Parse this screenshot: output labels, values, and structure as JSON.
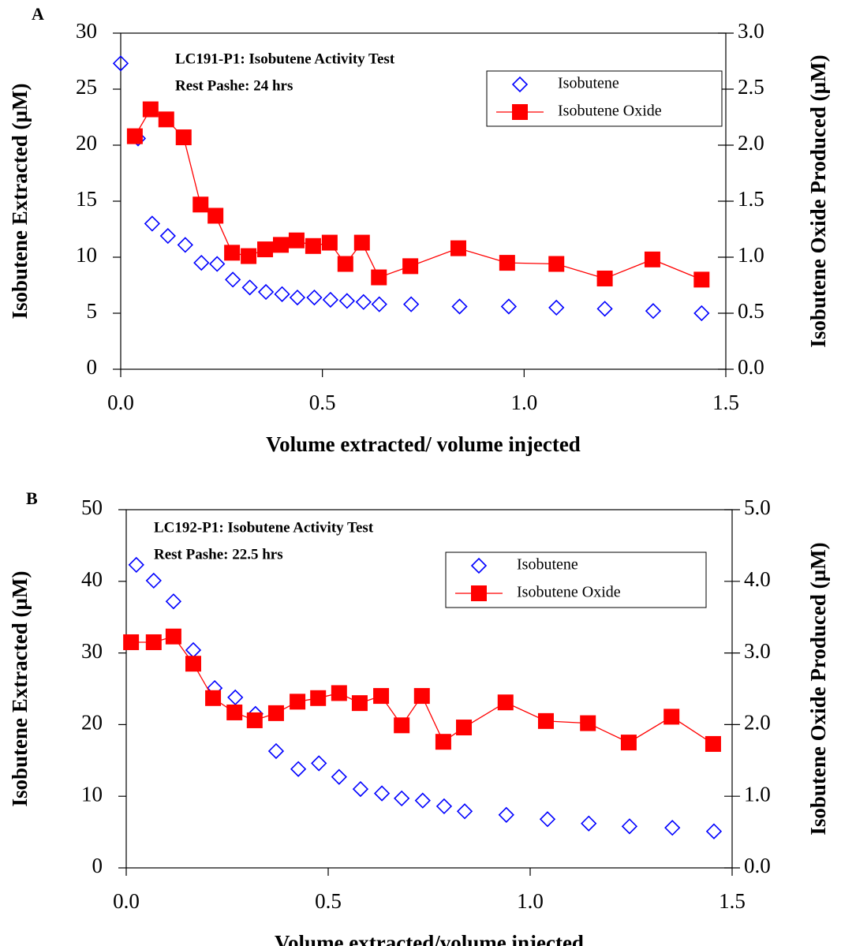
{
  "chart_data": [
    {
      "type": "scatter",
      "panel_label": "A",
      "title": "LC191-P1: Isobutene Activity Test",
      "subtitle": "Rest Pashe: 24 hrs",
      "xlabel": "Volume extracted/ volume injected",
      "ylabel": "Isobutene Extracted (µM)",
      "y2label": "Isobutene Oxide Produced (µM)",
      "xlim": [
        0,
        1.5
      ],
      "xticks": [
        {
          "value": 0,
          "label": "0.0"
        },
        {
          "value": 0.5,
          "label": "0.5"
        },
        {
          "value": 1,
          "label": "1.0"
        },
        {
          "value": 1.5,
          "label": "1.5"
        }
      ],
      "ylim": [
        0,
        30
      ],
      "yticks": [
        0,
        5,
        10,
        15,
        20,
        25,
        30
      ],
      "y2lim": [
        0,
        3
      ],
      "y2ticks": [
        {
          "value": 0,
          "label": "0.0"
        },
        {
          "value": 0.5,
          "label": "0.5"
        },
        {
          "value": 1,
          "label": "1.0"
        },
        {
          "value": 1.5,
          "label": "1.5"
        },
        {
          "value": 2,
          "label": "2.0"
        },
        {
          "value": 2.5,
          "label": "2.5"
        },
        {
          "value": 3,
          "label": "3.0"
        }
      ],
      "legend": "upper right",
      "series": [
        {
          "name": "Isobutene",
          "color": "#0000ff",
          "marker": "diamond",
          "axis": "y",
          "x": [
            0.0,
            0.043,
            0.078,
            0.117,
            0.16,
            0.2,
            0.239,
            0.278,
            0.32,
            0.36,
            0.4,
            0.438,
            0.48,
            0.52,
            0.561,
            0.602,
            0.641,
            0.72,
            0.84,
            0.962,
            1.08,
            1.2,
            1.32,
            1.44
          ],
          "values": [
            27.3,
            20.6,
            13.0,
            11.9,
            11.1,
            9.5,
            9.4,
            8.0,
            7.3,
            6.9,
            6.7,
            6.4,
            6.4,
            6.2,
            6.1,
            6.0,
            5.8,
            5.8,
            5.6,
            5.6,
            5.5,
            5.4,
            5.2,
            5.0
          ]
        },
        {
          "name": "Isobutene Oxide",
          "color": "#ff0000",
          "marker": "square",
          "axis": "y2",
          "x": [
            0.035,
            0.074,
            0.113,
            0.156,
            0.198,
            0.235,
            0.276,
            0.317,
            0.358,
            0.397,
            0.436,
            0.477,
            0.518,
            0.557,
            0.598,
            0.64,
            0.718,
            0.837,
            0.958,
            1.08,
            1.2,
            1.318,
            1.44
          ],
          "values": [
            2.08,
            2.32,
            2.23,
            2.07,
            1.47,
            1.37,
            1.04,
            1.01,
            1.07,
            1.11,
            1.15,
            1.1,
            1.13,
            0.94,
            1.13,
            0.82,
            0.92,
            1.08,
            0.95,
            0.94,
            0.81,
            0.98,
            0.8
          ]
        }
      ]
    },
    {
      "type": "scatter",
      "panel_label": "B",
      "title": "LC192-P1: Isobutene Activity Test",
      "subtitle": "Rest Pashe: 22.5 hrs",
      "xlabel": "Volume extracted/volume injected",
      "ylabel": "Isobutene Extracted (µM)",
      "y2label": "Isobutene Oxide Produced (µM)",
      "xlim": [
        0,
        1.5
      ],
      "xticks": [
        {
          "value": 0,
          "label": "0.0"
        },
        {
          "value": 0.5,
          "label": "0.5"
        },
        {
          "value": 1,
          "label": "1.0"
        },
        {
          "value": 1.5,
          "label": "1.5"
        }
      ],
      "ylim": [
        0,
        50
      ],
      "yticks": [
        0,
        10,
        20,
        30,
        40,
        50
      ],
      "y2lim": [
        0,
        5
      ],
      "y2ticks": [
        {
          "value": 0,
          "label": "0.0"
        },
        {
          "value": 1,
          "label": "1.0"
        },
        {
          "value": 2,
          "label": "2.0"
        },
        {
          "value": 3,
          "label": "3.0"
        },
        {
          "value": 4,
          "label": "4.0"
        },
        {
          "value": 5,
          "label": "5.0"
        }
      ],
      "legend": "upper right",
      "series": [
        {
          "name": "Isobutene",
          "color": "#0000ff",
          "marker": "diamond",
          "axis": "y",
          "x": [
            0.025,
            0.068,
            0.117,
            0.166,
            0.219,
            0.27,
            0.32,
            0.371,
            0.426,
            0.477,
            0.527,
            0.58,
            0.633,
            0.682,
            0.734,
            0.787,
            0.838,
            0.941,
            1.043,
            1.145,
            1.246,
            1.352,
            1.455
          ],
          "values": [
            42.3,
            40.1,
            37.2,
            30.4,
            25.1,
            23.8,
            21.5,
            16.3,
            13.8,
            14.6,
            12.7,
            11.0,
            10.4,
            9.7,
            9.4,
            8.6,
            7.9,
            7.4,
            6.8,
            6.2,
            5.8,
            5.6,
            5.1
          ]
        },
        {
          "name": "Isobutene Oxide",
          "color": "#ff0000",
          "marker": "square",
          "axis": "y2",
          "x": [
            0.012,
            0.068,
            0.117,
            0.166,
            0.215,
            0.268,
            0.318,
            0.371,
            0.424,
            0.475,
            0.527,
            0.578,
            0.631,
            0.682,
            0.732,
            0.785,
            0.836,
            0.939,
            1.039,
            1.143,
            1.244,
            1.35,
            1.453
          ],
          "values": [
            3.15,
            3.15,
            3.23,
            2.85,
            2.37,
            2.17,
            2.06,
            2.16,
            2.32,
            2.37,
            2.44,
            2.3,
            2.4,
            1.99,
            2.4,
            1.76,
            1.96,
            2.31,
            2.05,
            2.02,
            1.75,
            2.11,
            1.73
          ]
        }
      ]
    }
  ]
}
